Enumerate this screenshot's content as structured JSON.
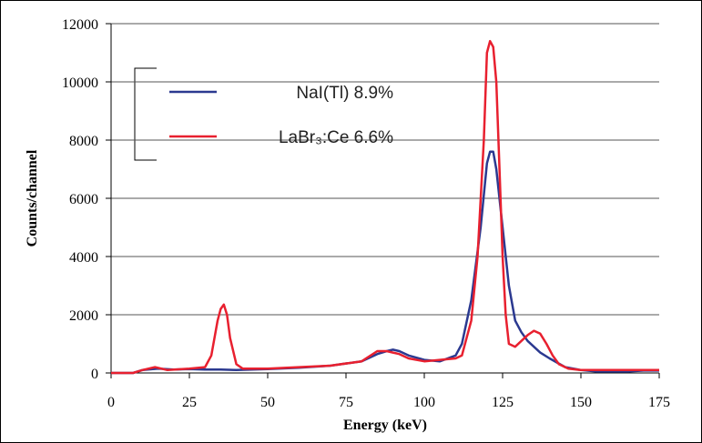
{
  "chart_data": {
    "type": "line",
    "xlabel": "Energy (keV)",
    "ylabel": "Counts/channel",
    "xlim": [
      0,
      175
    ],
    "xticks": [
      0,
      25,
      50,
      75,
      100,
      125,
      150,
      175
    ],
    "ylim": [
      0,
      12000
    ],
    "yticks": [
      0,
      2000,
      4000,
      6000,
      8000,
      10000,
      12000
    ],
    "grid": true,
    "series": [
      {
        "name": "NaI(Tl) 8.9%",
        "color": "#2b3990",
        "x": [
          0,
          7,
          10,
          15,
          20,
          25,
          30,
          35,
          40,
          50,
          60,
          70,
          80,
          85,
          88,
          90,
          92,
          95,
          100,
          105,
          110,
          112,
          115,
          118,
          120,
          121,
          122,
          123,
          125,
          127,
          129,
          131,
          133,
          135,
          137,
          140,
          145,
          150,
          155,
          160,
          165,
          170,
          175
        ],
        "values": [
          0,
          0,
          100,
          150,
          120,
          130,
          120,
          120,
          100,
          130,
          180,
          250,
          400,
          650,
          750,
          800,
          750,
          600,
          450,
          400,
          600,
          1000,
          2500,
          5000,
          7200,
          7600,
          7600,
          7000,
          5000,
          3000,
          1800,
          1400,
          1100,
          900,
          700,
          500,
          200,
          100,
          50,
          50,
          50,
          80,
          80
        ]
      },
      {
        "name": "LaBr₃:Ce 6.6%",
        "color": "#e8202f",
        "x": [
          0,
          7,
          10,
          14,
          18,
          25,
          30,
          32,
          34,
          35,
          36,
          37,
          38,
          40,
          42,
          50,
          60,
          70,
          80,
          85,
          88,
          90,
          92,
          95,
          100,
          105,
          110,
          112,
          115,
          117,
          119,
          120,
          121,
          122,
          123,
          124,
          125,
          126,
          127,
          129,
          131,
          133,
          135,
          137,
          139,
          141,
          143,
          146,
          150,
          175
        ],
        "values": [
          0,
          0,
          100,
          200,
          100,
          150,
          200,
          600,
          1800,
          2200,
          2350,
          2000,
          1200,
          300,
          150,
          150,
          200,
          250,
          400,
          750,
          750,
          700,
          650,
          500,
          400,
          450,
          500,
          600,
          1800,
          4000,
          8000,
          11000,
          11400,
          11200,
          10000,
          7000,
          4000,
          2000,
          1000,
          900,
          1100,
          1300,
          1450,
          1350,
          1000,
          600,
          300,
          150,
          100,
          100
        ]
      }
    ]
  }
}
